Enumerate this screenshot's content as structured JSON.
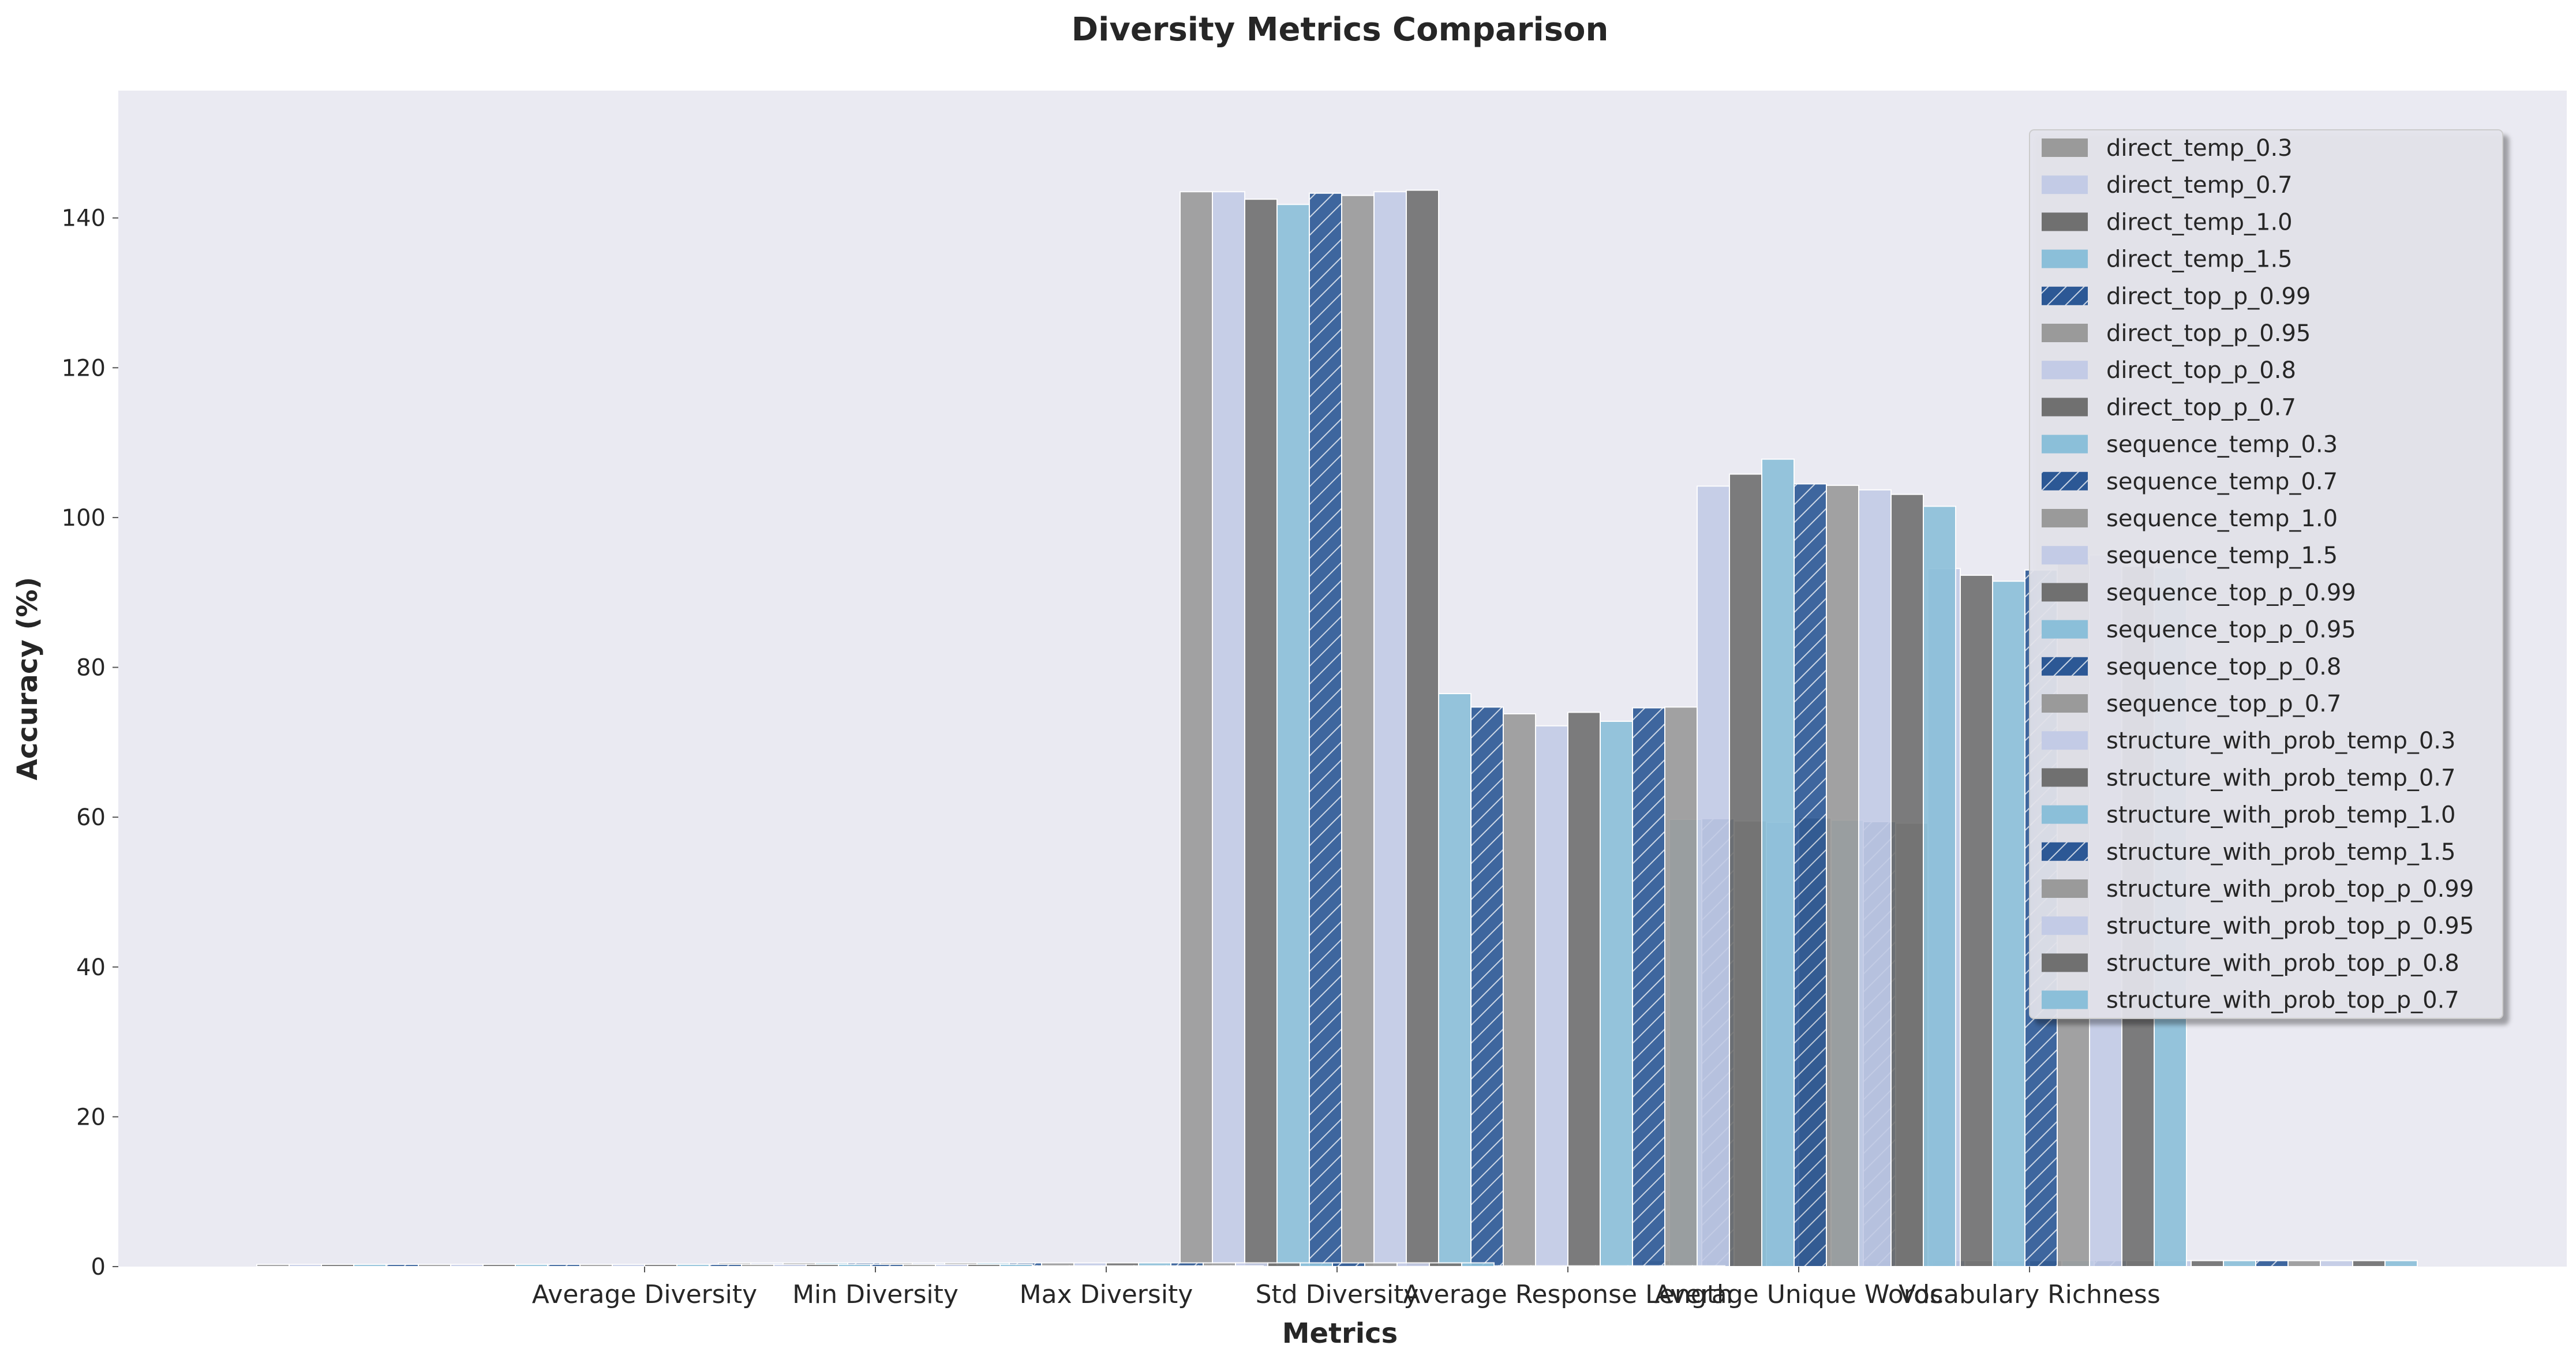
{
  "chart_data": {
    "type": "bar",
    "title": "Diversity Metrics Comparison",
    "xlabel": "Metrics",
    "ylabel": "Accuracy (%)",
    "ylim": [
      0,
      157
    ],
    "yticks": [
      0,
      20,
      40,
      60,
      80,
      100,
      120,
      140
    ],
    "grid": false,
    "legend_placement": "top-right",
    "categories": [
      "Average Diversity",
      "Min Diversity",
      "Max Diversity",
      "Std Diversity",
      "Average Response Length",
      "Average Unique Words",
      "Vocabulary Richness"
    ],
    "series": [
      {
        "name": "direct_temp_0.3",
        "color": "#9a9a9a",
        "hatch": false,
        "values": [
          0.3,
          0.1,
          0.5,
          0.1,
          143.5,
          0.2,
          0.8
        ]
      },
      {
        "name": "direct_temp_0.7",
        "color": "#c3cbe6",
        "hatch": false,
        "values": [
          0.3,
          0.1,
          0.5,
          0.1,
          143.5,
          0.2,
          0.8
        ]
      },
      {
        "name": "direct_temp_1.0",
        "color": "#707070",
        "hatch": false,
        "values": [
          0.3,
          0.1,
          0.5,
          0.1,
          142.5,
          0.2,
          0.8
        ]
      },
      {
        "name": "direct_temp_1.5",
        "color": "#8bbfd9",
        "hatch": false,
        "values": [
          0.3,
          0.1,
          0.5,
          0.1,
          141.8,
          0.2,
          0.8
        ]
      },
      {
        "name": "direct_top_p_0.99",
        "color": "#2c5895",
        "hatch": true,
        "values": [
          0.3,
          0.1,
          0.5,
          0.1,
          143.3,
          0.2,
          0.8
        ]
      },
      {
        "name": "direct_top_p_0.95",
        "color": "#9a9a9a",
        "hatch": false,
        "values": [
          0.3,
          0.1,
          0.5,
          0.1,
          143.0,
          0.2,
          0.8
        ]
      },
      {
        "name": "direct_top_p_0.8",
        "color": "#c3cbe6",
        "hatch": false,
        "values": [
          0.3,
          0.1,
          0.5,
          0.1,
          143.5,
          0.2,
          0.8
        ]
      },
      {
        "name": "direct_top_p_0.7",
        "color": "#707070",
        "hatch": false,
        "values": [
          0.3,
          0.1,
          0.5,
          0.1,
          143.7,
          0.2,
          0.8
        ]
      },
      {
        "name": "sequence_temp_0.3",
        "color": "#8bbfd9",
        "hatch": false,
        "values": [
          0.3,
          0.1,
          0.5,
          0.1,
          76.5,
          59.7,
          0.8
        ]
      },
      {
        "name": "sequence_temp_0.7",
        "color": "#2c5895",
        "hatch": true,
        "values": [
          0.3,
          0.1,
          0.5,
          0.1,
          74.7,
          59.8,
          0.8
        ]
      },
      {
        "name": "sequence_temp_1.0",
        "color": "#9a9a9a",
        "hatch": false,
        "values": [
          0.3,
          0.1,
          0.5,
          0.1,
          73.8,
          59.5,
          0.8
        ]
      },
      {
        "name": "sequence_temp_1.5",
        "color": "#c3cbe6",
        "hatch": false,
        "values": [
          0.3,
          0.1,
          0.5,
          0.1,
          72.2,
          59.3,
          0.8
        ]
      },
      {
        "name": "sequence_top_p_0.99",
        "color": "#707070",
        "hatch": false,
        "values": [
          0.3,
          0.1,
          0.5,
          0.1,
          74.0,
          59.9,
          0.8
        ]
      },
      {
        "name": "sequence_top_p_0.95",
        "color": "#8bbfd9",
        "hatch": false,
        "values": [
          0.3,
          0.1,
          0.5,
          0.1,
          72.8,
          59.6,
          0.8
        ]
      },
      {
        "name": "sequence_top_p_0.8",
        "color": "#2c5895",
        "hatch": true,
        "values": [
          0.3,
          0.1,
          0.5,
          0.1,
          74.6,
          59.4,
          0.8
        ]
      },
      {
        "name": "sequence_top_p_0.7",
        "color": "#9a9a9a",
        "hatch": false,
        "values": [
          0.3,
          0.1,
          0.5,
          0.1,
          74.7,
          59.2,
          0.8
        ]
      },
      {
        "name": "structure_with_prob_temp_0.3",
        "color": "#c3cbe6",
        "hatch": false,
        "values": [
          0.3,
          0.1,
          0.5,
          0.1,
          104.2,
          93.2,
          0.8
        ]
      },
      {
        "name": "structure_with_prob_temp_0.7",
        "color": "#707070",
        "hatch": false,
        "values": [
          0.3,
          0.1,
          0.5,
          0.1,
          105.8,
          92.3,
          0.8
        ]
      },
      {
        "name": "structure_with_prob_temp_1.0",
        "color": "#8bbfd9",
        "hatch": false,
        "values": [
          0.3,
          0.1,
          0.5,
          0.1,
          107.8,
          91.5,
          0.8
        ]
      },
      {
        "name": "structure_with_prob_temp_1.5",
        "color": "#2c5895",
        "hatch": true,
        "values": [
          0.3,
          0.1,
          0.5,
          0.1,
          104.5,
          93.0,
          0.8
        ]
      },
      {
        "name": "structure_with_prob_top_p_0.99",
        "color": "#9a9a9a",
        "hatch": false,
        "values": [
          0.3,
          0.1,
          0.5,
          0.1,
          104.3,
          94.5,
          0.8
        ]
      },
      {
        "name": "structure_with_prob_top_p_0.95",
        "color": "#c3cbe6",
        "hatch": false,
        "values": [
          0.3,
          0.1,
          0.5,
          0.1,
          103.7,
          95.0,
          0.8
        ]
      },
      {
        "name": "structure_with_prob_top_p_0.8",
        "color": "#707070",
        "hatch": false,
        "values": [
          0.3,
          0.1,
          0.5,
          0.1,
          103.1,
          93.5,
          0.8
        ]
      },
      {
        "name": "structure_with_prob_top_p_0.7",
        "color": "#8bbfd9",
        "hatch": false,
        "values": [
          0.3,
          0.1,
          0.5,
          0.1,
          101.5,
          93.3,
          0.8
        ]
      }
    ]
  }
}
